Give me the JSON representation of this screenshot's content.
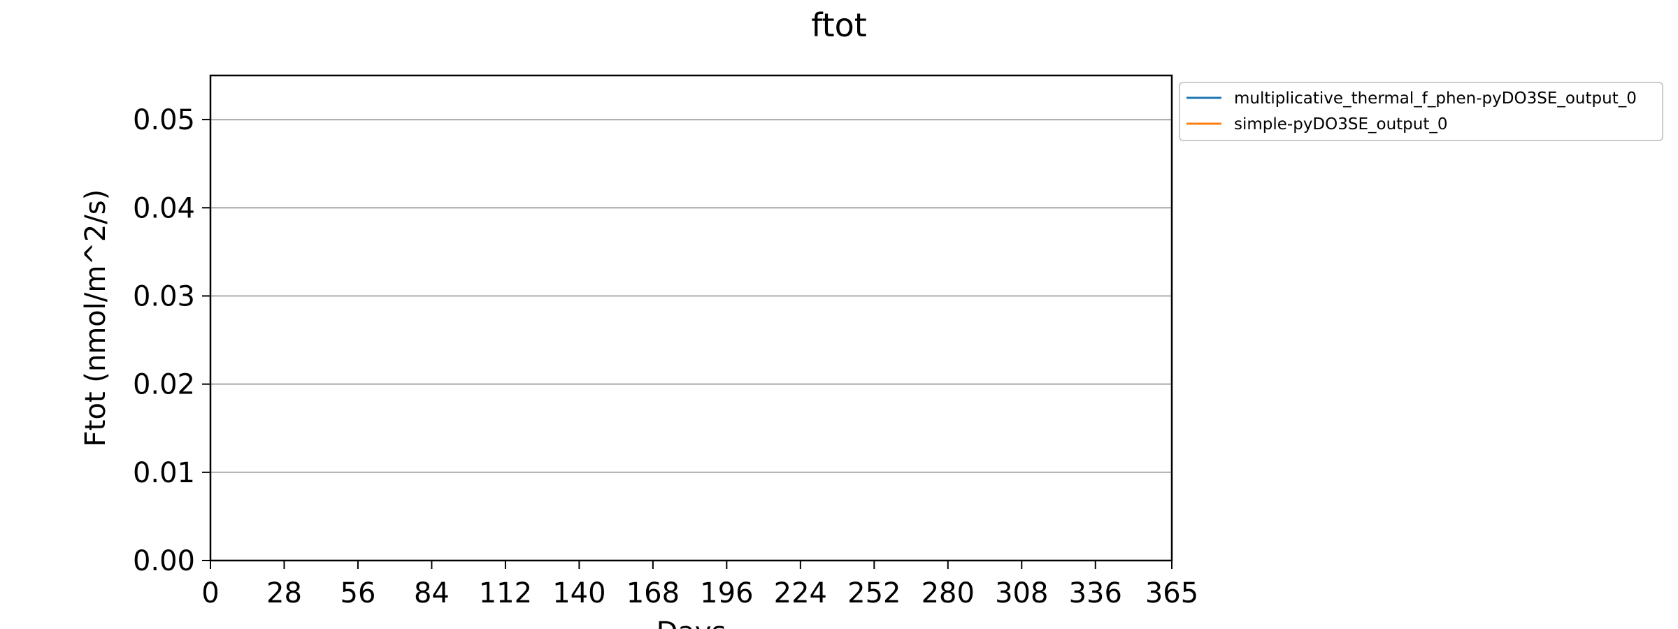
{
  "chart_data": {
    "type": "line",
    "title": "ftot",
    "xlabel": "Days",
    "ylabel": "Ftot (nmol/m^2/s)",
    "xlim": [
      0,
      365
    ],
    "ylim": [
      0,
      0.055
    ],
    "x_ticks": [
      0,
      28,
      56,
      84,
      112,
      140,
      168,
      196,
      224,
      252,
      280,
      308,
      336,
      365
    ],
    "x_tick_labels": [
      "0",
      "28",
      "56",
      "84",
      "112",
      "140",
      "168",
      "196",
      "224",
      "252",
      "280",
      "308",
      "336",
      "365"
    ],
    "y_ticks": [
      0,
      0.01,
      0.02,
      0.03,
      0.04,
      0.05
    ],
    "y_tick_labels": [
      "0.00",
      "0.01",
      "0.02",
      "0.03",
      "0.04",
      "0.05"
    ],
    "grid": "horizontal",
    "legend_position": "outside-right",
    "series": [
      {
        "name": "multiplicative_thermal_f_phen-pyDO3SE_output_0",
        "color": "#1f77b4",
        "x": [],
        "values": []
      },
      {
        "name": "simple-pyDO3SE_output_0",
        "color": "#ff7f0e",
        "x": [],
        "values": []
      }
    ]
  }
}
